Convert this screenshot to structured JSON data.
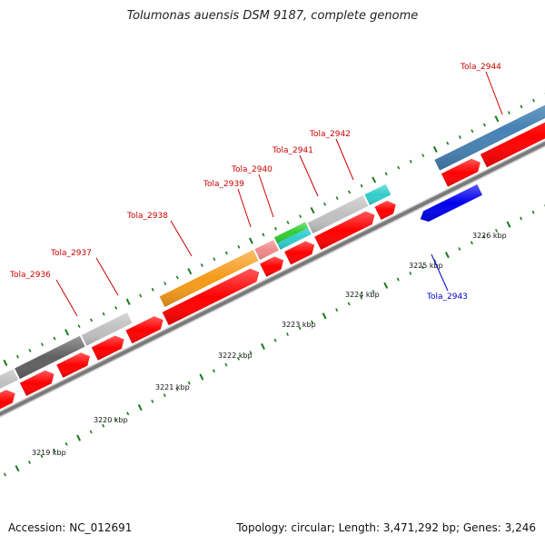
{
  "title": "Tolumonas auensis DSM 9187, complete genome",
  "footer": {
    "accession": "Accession: NC_012691",
    "summary": "Topology: circular; Length: 3,471,292 bp; Genes: 3,246"
  },
  "colors": {
    "background": "#ffffff",
    "backbone": "#7a7a7a",
    "cds": "#ff0000",
    "tick": "#1a7a1a",
    "label_forward": "#cc0000",
    "label_reverse": "#0000cc"
  },
  "scale": {
    "unit": "kbp",
    "labels": [
      "3219 kbp",
      "3220 kbp",
      "3221 kbp",
      "3222 kbp",
      "3223 kbp",
      "3224 kbp",
      "3225 kbp",
      "3226 kbp"
    ]
  },
  "genes": [
    {
      "label": "Tola_2936",
      "strand": "forward",
      "cog_color": "#c0c0c0"
    },
    {
      "label": "Tola_2937",
      "strand": "forward",
      "cog_color": "#606060"
    },
    {
      "label": "Tola_2938",
      "strand": "forward",
      "cog_color": "#f59a1a"
    },
    {
      "label": "Tola_2939",
      "strand": "forward",
      "cog_color": "#f08a8a"
    },
    {
      "label": "Tola_2940",
      "strand": "forward",
      "cog_color": "#33cc33"
    },
    {
      "label": "Tola_2941",
      "strand": "forward",
      "cog_color": "#33cccc"
    },
    {
      "label": "Tola_2942",
      "strand": "forward",
      "cog_color": "#c0c0c0"
    },
    {
      "label": "Tola_2943",
      "strand": "reverse",
      "cog_color": "#0000ee"
    },
    {
      "label": "Tola_2944",
      "strand": "forward",
      "cog_color": "#4682b4"
    }
  ]
}
